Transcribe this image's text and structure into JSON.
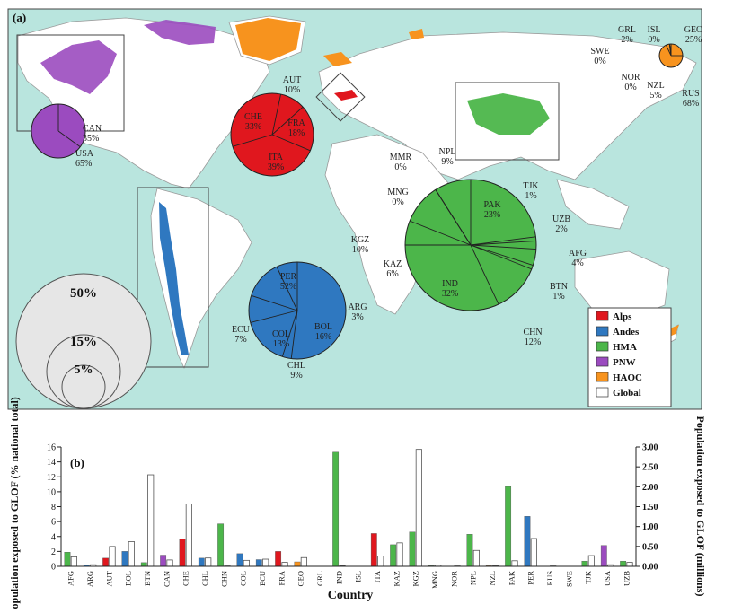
{
  "panel_a_label": "(a)",
  "panel_b_label": "(b)",
  "colors": {
    "Alps": "#e0171e",
    "Andes": "#2f78c0",
    "HMA": "#4cb64a",
    "PNW": "#9b4bbf",
    "HAOC": "#f7931e",
    "Global": "#ffffff",
    "ocean": "#b9e5de",
    "land": "#ffffff"
  },
  "legend": [
    {
      "label": "Alps",
      "color": "#e0171e"
    },
    {
      "label": "Andes",
      "color": "#2f78c0"
    },
    {
      "label": "HMA",
      "color": "#4cb64a"
    },
    {
      "label": "PNW",
      "color": "#9b4bbf"
    },
    {
      "label": "HAOC",
      "color": "#f7931e"
    },
    {
      "label": "Global",
      "color": "#ffffff"
    }
  ],
  "size_legend": [
    "50%",
    "15%",
    "5%"
  ],
  "pies": [
    {
      "region": "PNW",
      "slices": [
        {
          "label": "CAN",
          "pct": "35%",
          "value": 35
        },
        {
          "label": "USA",
          "pct": "65%",
          "value": 65
        }
      ]
    },
    {
      "region": "Alps",
      "slices": [
        {
          "label": "AUT",
          "pct": "10%",
          "value": 10
        },
        {
          "label": "FRA",
          "pct": "18%",
          "value": 18
        },
        {
          "label": "ITA",
          "pct": "39%",
          "value": 39
        },
        {
          "label": "CHE",
          "pct": "33%",
          "value": 33
        }
      ]
    },
    {
      "region": "Andes",
      "slices": [
        {
          "label": "PER",
          "pct": "52%",
          "value": 52
        },
        {
          "label": "ARG",
          "pct": "3%",
          "value": 3
        },
        {
          "label": "BOL",
          "pct": "16%",
          "value": 16
        },
        {
          "label": "CHL",
          "pct": "9%",
          "value": 9
        },
        {
          "label": "COL",
          "pct": "13%",
          "value": 13
        },
        {
          "label": "ECU",
          "pct": "7%",
          "value": 7
        }
      ]
    },
    {
      "region": "HMA",
      "slices": [
        {
          "label": "PAK",
          "pct": "23%",
          "value": 23
        },
        {
          "label": "TJK",
          "pct": "1%",
          "value": 1
        },
        {
          "label": "UZB",
          "pct": "2%",
          "value": 2
        },
        {
          "label": "AFG",
          "pct": "4%",
          "value": 4
        },
        {
          "label": "BTN",
          "pct": "1%",
          "value": 1
        },
        {
          "label": "CHN",
          "pct": "12%",
          "value": 12
        },
        {
          "label": "IND",
          "pct": "32%",
          "value": 32
        },
        {
          "label": "KAZ",
          "pct": "6%",
          "value": 6
        },
        {
          "label": "KGZ",
          "pct": "10%",
          "value": 10
        },
        {
          "label": "MNG",
          "pct": "0%",
          "value": 0
        },
        {
          "label": "MMR",
          "pct": "0%",
          "value": 0
        },
        {
          "label": "NPL",
          "pct": "9%",
          "value": 9
        }
      ]
    },
    {
      "region": "HAOC",
      "slices": [
        {
          "label": "GEO",
          "pct": "25%",
          "value": 25
        },
        {
          "label": "RUS",
          "pct": "68%",
          "value": 68
        },
        {
          "label": "NZL",
          "pct": "5%",
          "value": 5
        },
        {
          "label": "NOR",
          "pct": "0%",
          "value": 0
        },
        {
          "label": "SWE",
          "pct": "0%",
          "value": 0
        },
        {
          "label": "GRL",
          "pct": "2%",
          "value": 2
        },
        {
          "label": "ISL",
          "pct": "0%",
          "value": 0
        }
      ]
    }
  ],
  "chart_data": {
    "type": "bar",
    "xlabel": "Country",
    "ylabel": "Population exposed to GLOF (% national total)",
    "y2label": "Population exposed to GLOF (millions)",
    "ylim": [
      0,
      16
    ],
    "y2lim": [
      0,
      3
    ],
    "yticks": [
      "0",
      "2",
      "4",
      "6",
      "8",
      "10",
      "12",
      "14",
      "16"
    ],
    "y2ticks": [
      "0.00",
      "0.50",
      "1.00",
      "1.50",
      "2.00",
      "2.50",
      "3.00"
    ],
    "categories": [
      "AFG",
      "ARG",
      "AUT",
      "BOL",
      "BTN",
      "CAN",
      "CHE",
      "CHL",
      "CHN",
      "COL",
      "ECU",
      "FRA",
      "GEO",
      "GRL",
      "IND",
      "ISL",
      "ITA",
      "KAZ",
      "KGZ",
      "MNG",
      "NOR",
      "NPL",
      "NZL",
      "PAK",
      "PER",
      "RUS",
      "SWE",
      "TJK",
      "USA",
      "UZB"
    ],
    "region": [
      "HMA",
      "Andes",
      "Alps",
      "Andes",
      "HMA",
      "PNW",
      "Alps",
      "Andes",
      "HMA",
      "Andes",
      "Andes",
      "Alps",
      "HAOC",
      "HAOC",
      "HMA",
      "HAOC",
      "Alps",
      "HMA",
      "HMA",
      "HMA",
      "HAOC",
      "HMA",
      "HAOC",
      "HMA",
      "Andes",
      "HAOC",
      "HAOC",
      "HMA",
      "PNW",
      "HMA"
    ],
    "series": [
      {
        "name": "% national total",
        "axis": "left",
        "values": [
          1.9,
          0.2,
          1.1,
          2.0,
          0.5,
          1.5,
          3.7,
          1.1,
          5.7,
          1.7,
          0.9,
          2.0,
          0.6,
          0.0,
          15.3,
          0.0,
          4.4,
          2.9,
          4.6,
          0.1,
          0.0,
          4.3,
          0.1,
          10.7,
          6.7,
          0.0,
          0.0,
          0.7,
          2.8,
          0.7
        ]
      },
      {
        "name": "millions",
        "axis": "right",
        "values": [
          0.24,
          0.04,
          0.5,
          0.62,
          2.3,
          0.16,
          1.57,
          0.21,
          0.01,
          0.15,
          0.18,
          0.1,
          0.22,
          0.0,
          0.02,
          0.0,
          0.26,
          0.59,
          2.94,
          0.03,
          0.01,
          0.4,
          0.02,
          0.14,
          0.7,
          0.01,
          0.0,
          0.27,
          0.04,
          0.1
        ]
      }
    ]
  }
}
